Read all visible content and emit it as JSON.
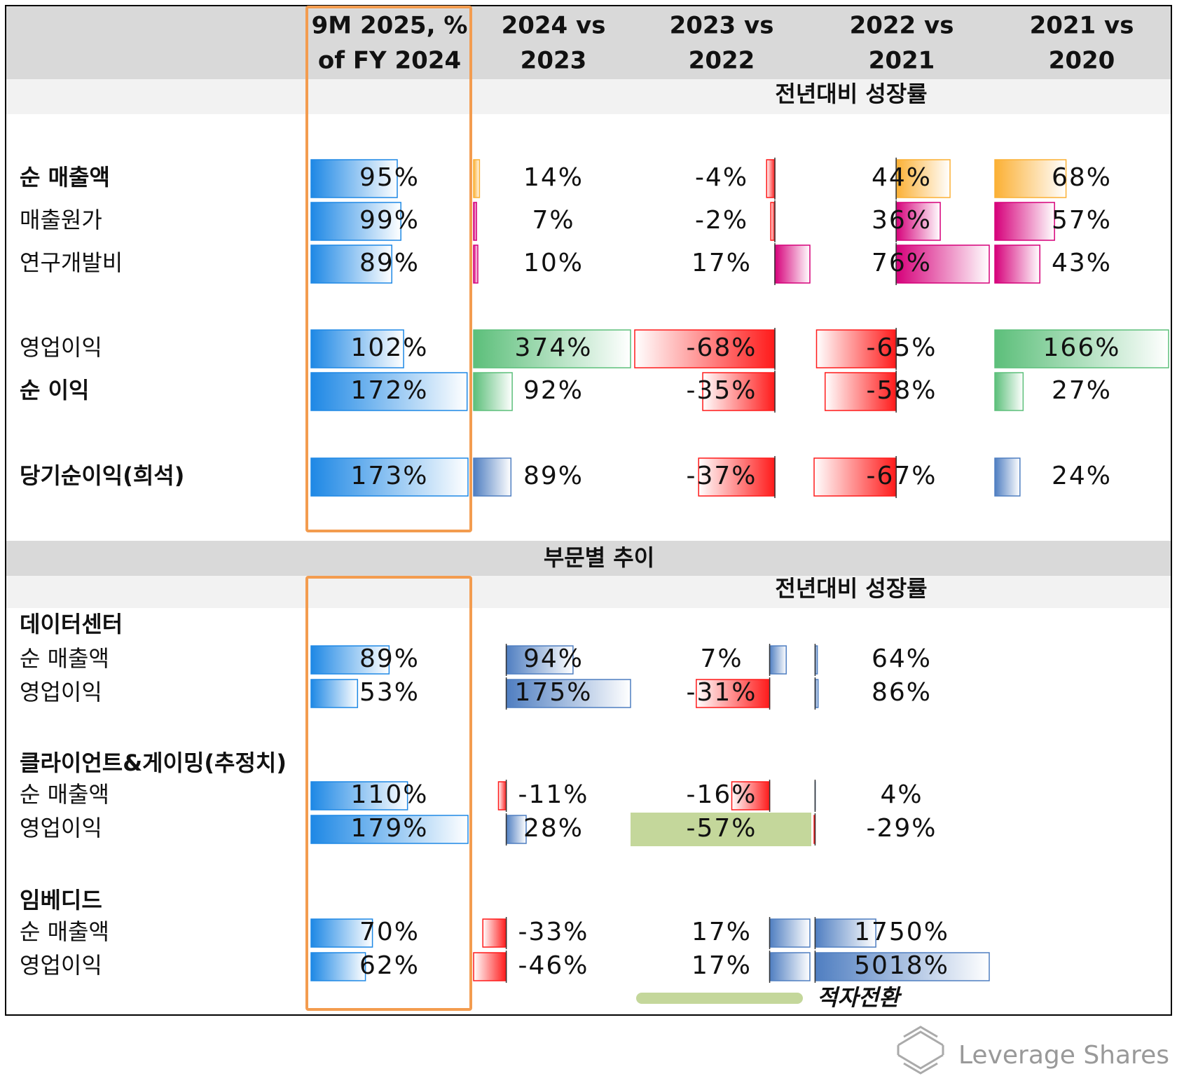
{
  "header": {
    "columns": [
      [
        "9M 2025, %",
        "of FY 2024"
      ],
      [
        "2024 vs",
        "2023"
      ],
      [
        "2023 vs",
        "2022"
      ],
      [
        "2022 vs",
        "2021"
      ],
      [
        "2021 vs",
        "2020"
      ]
    ]
  },
  "first_column_color": "#1e88e5",
  "negative_color": "#ff1a1a",
  "section1": {
    "subtitle": "전년대비 성장률",
    "groups": [
      {
        "rows": [
          {
            "label": "순 매출액",
            "bold": true,
            "color": "#fbb034",
            "values": [
              95,
              14,
              -4,
              44,
              68
            ],
            "value_labels": [
              "95%",
              "14%",
              "-4%",
              "44%",
              "68%"
            ]
          },
          {
            "label": "매출원가",
            "bold": false,
            "color": "#d6007a",
            "values": [
              99,
              7,
              -2,
              36,
              57
            ],
            "value_labels": [
              "99%",
              "7%",
              "-2%",
              "36%",
              "57%"
            ]
          },
          {
            "label": "연구개발비",
            "bold": false,
            "color": "#d6007a",
            "values": [
              89,
              10,
              17,
              76,
              43
            ],
            "value_labels": [
              "89%",
              "10%",
              "17%",
              "76%",
              "43%"
            ]
          }
        ]
      },
      {
        "rows": [
          {
            "label": "영업이익",
            "bold": false,
            "color": "#5cbf7a",
            "values": [
              102,
              374,
              -68,
              -65,
              166
            ],
            "value_labels": [
              "102%",
              "374%",
              "-68%",
              "-65%",
              "166%"
            ]
          },
          {
            "label": "순 이익",
            "bold": true,
            "color": "#5cbf7a",
            "values": [
              172,
              92,
              -35,
              -58,
              27
            ],
            "value_labels": [
              "172%",
              "92%",
              "-35%",
              "-58%",
              "27%"
            ]
          }
        ]
      },
      {
        "rows": [
          {
            "label": "당기순이익(희석)",
            "bold": true,
            "color": "#4f7ec1",
            "values": [
              173,
              89,
              -37,
              -67,
              24
            ],
            "value_labels": [
              "173%",
              "89%",
              "-37%",
              "-67%",
              "24%"
            ]
          }
        ]
      }
    ]
  },
  "section2": {
    "title": "부문별 추이",
    "subtitle": "전년대비 성장률",
    "groups": [
      {
        "title": "데이터센터",
        "rows": [
          {
            "label": "순 매출액",
            "bold": false,
            "color": "#4f7ec1",
            "values": [
              89,
              94,
              7,
              64
            ],
            "value_labels": [
              "89%",
              "94%",
              "7%",
              "64%"
            ]
          },
          {
            "label": "영업이익",
            "bold": false,
            "color": "#4f7ec1",
            "values": [
              53,
              175,
              -31,
              86
            ],
            "value_labels": [
              "53%",
              "175%",
              "-31%",
              "86%"
            ]
          }
        ]
      },
      {
        "title": "클라이언트&게이밍(추정치)",
        "rows": [
          {
            "label": "순 매출액",
            "bold": false,
            "color": "#4f7ec1",
            "values": [
              110,
              -11,
              -16,
              4
            ],
            "value_labels": [
              "110%",
              "-11%",
              "-16%",
              "4%"
            ]
          },
          {
            "label": "영업이익",
            "bold": false,
            "color": "#4f7ec1",
            "values": [
              179,
              28,
              -57,
              -29
            ],
            "value_labels": [
              "179%",
              "28%",
              "-57%",
              "-29%"
            ],
            "highlight": [
              2
            ]
          }
        ]
      },
      {
        "title": "임베디드",
        "rows": [
          {
            "label": "순 매출액",
            "bold": false,
            "color": "#4f7ec1",
            "values": [
              70,
              -33,
              17,
              1750
            ],
            "value_labels": [
              "70%",
              "-33%",
              "17%",
              "1750%"
            ]
          },
          {
            "label": "영업이익",
            "bold": false,
            "color": "#4f7ec1",
            "values": [
              62,
              -46,
              17,
              5018
            ],
            "value_labels": [
              "62%",
              "-46%",
              "17%",
              "5018%"
            ]
          }
        ]
      }
    ],
    "legend": {
      "color": "#c4d79b",
      "label": "적자전환"
    }
  },
  "footer": {
    "brand": "Leverage Shares"
  }
}
